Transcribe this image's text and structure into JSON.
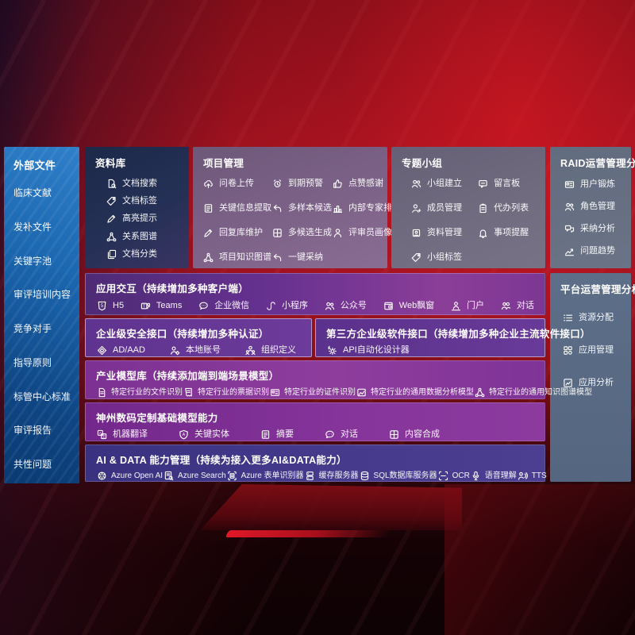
{
  "palette": {
    "background_red": "#a01320",
    "background_dark": "#140205",
    "sidebar_blue": "#1b67b0",
    "panel_navy": "#243055",
    "panel_mauve": "#7d6288",
    "panel_gray": "#716c80",
    "panel_slate_light": "#6b7386",
    "panel_slate": "#586a84",
    "row_purple": "#6a3390",
    "row_violet": "#6d3b9b",
    "row_magenta": "#8e3d9d",
    "row_indigo": "#453a8c",
    "text": "#ffffff"
  },
  "sidebar": {
    "title": "外部文件",
    "items": [
      "临床文献",
      "发补文件",
      "关键字池",
      "审评培训内容",
      "竞争对手",
      "指导原则",
      "标管中心标准",
      "审评报告",
      "共性问题"
    ]
  },
  "repository": {
    "title": "资料库",
    "items": [
      {
        "icon": "doc-search",
        "label": "文档搜索"
      },
      {
        "icon": "tag",
        "label": "文档标签"
      },
      {
        "icon": "highlight-pen",
        "label": "高亮提示"
      },
      {
        "icon": "knowledge-graph",
        "label": "关系图谱"
      },
      {
        "icon": "docs-copy",
        "label": "文档分类"
      }
    ]
  },
  "project": {
    "title": "项目管理",
    "items": [
      {
        "icon": "cloud-upload",
        "label": "问卷上传"
      },
      {
        "icon": "alarm",
        "label": "到期预警"
      },
      {
        "icon": "thumbs-up",
        "label": "点赞感谢"
      },
      {
        "icon": "doc-extract",
        "label": "关键信息提取"
      },
      {
        "icon": "reply-arrow",
        "label": "多样本候选"
      },
      {
        "icon": "ranking",
        "label": "内部专家排名"
      },
      {
        "icon": "edit-pen",
        "label": "回复库维护"
      },
      {
        "icon": "multi-grid",
        "label": "多候选生成"
      },
      {
        "icon": "person",
        "label": "评审员画像"
      },
      {
        "icon": "knowledge-graph",
        "label": "项目知识图谱"
      },
      {
        "icon": "adopt-arrow",
        "label": "一键采纳"
      }
    ]
  },
  "group": {
    "title": "专题小组",
    "items": [
      {
        "icon": "people-group",
        "label": "小组建立"
      },
      {
        "icon": "bbs-board",
        "label": "留言板"
      },
      {
        "icon": "person-add",
        "label": "成员管理"
      },
      {
        "icon": "clipboard-list",
        "label": "代办列表"
      },
      {
        "icon": "album",
        "label": "资料管理"
      },
      {
        "icon": "bell",
        "label": "事项提醒"
      },
      {
        "icon": "tag",
        "label": "小组标签"
      }
    ]
  },
  "raid": {
    "title": "RAID运营管理分析",
    "items": [
      {
        "icon": "id-card",
        "label": "用户锻炼"
      },
      {
        "icon": "people-group",
        "label": "角色管理"
      },
      {
        "icon": "chat-analysis",
        "label": "采纳分析"
      },
      {
        "icon": "trend-chart",
        "label": "问题趋势"
      }
    ]
  },
  "platform": {
    "title": "平台运营管理分析",
    "items": [
      {
        "icon": "resource-list",
        "label": "资源分配"
      },
      {
        "icon": "app-grid",
        "label": "应用管理"
      },
      {
        "icon": "chart-report",
        "label": "应用分析"
      }
    ]
  },
  "interaction": {
    "title": "应用交互（持续增加多种客户端）",
    "items": [
      {
        "icon": "html5",
        "label": "H5"
      },
      {
        "icon": "teams",
        "label": "Teams"
      },
      {
        "icon": "wechat-work",
        "label": "企业微信"
      },
      {
        "icon": "mini-program",
        "label": "小程序"
      },
      {
        "icon": "official-account",
        "label": "公众号"
      },
      {
        "icon": "web-window",
        "label": "Web飘窗"
      },
      {
        "icon": "portal",
        "label": "门户"
      },
      {
        "icon": "dialog-people",
        "label": "对话"
      }
    ]
  },
  "security": {
    "title": "企业级安全接口（持续增加多种认证）",
    "items": [
      {
        "icon": "azure-ad",
        "label": "AD/AAD"
      },
      {
        "icon": "local-account",
        "label": "本地账号"
      },
      {
        "icon": "org-define",
        "label": "组织定义"
      }
    ]
  },
  "thirdparty": {
    "title": "第三方企业级软件接口（持续增加多种企业主流软件接口）",
    "items": [
      {
        "icon": "api-gear",
        "label": "API自动化设计器"
      }
    ]
  },
  "industry": {
    "title": "产业模型库（持续添加端到端场景模型）",
    "items": [
      {
        "icon": "file-doc",
        "label": "特定行业的文件识别"
      },
      {
        "icon": "receipt",
        "label": "特定行业的票据识别"
      },
      {
        "icon": "id-card",
        "label": "特定行业的证件识别"
      },
      {
        "icon": "image-chart",
        "label": "特定行业的通用数据分析模型"
      },
      {
        "icon": "knowledge-graph",
        "label": "特定行业的通用知识图谱模型"
      }
    ]
  },
  "base_models": {
    "title": "神州数码定制基础模型能力",
    "items": [
      {
        "icon": "translate",
        "label": "机器翻译"
      },
      {
        "icon": "shield-a",
        "label": "关键实体"
      },
      {
        "icon": "summary-doc",
        "label": "摘要"
      },
      {
        "icon": "chat-bubble",
        "label": "对话"
      },
      {
        "icon": "compose-grid",
        "label": "内容合成"
      }
    ]
  },
  "ai_data": {
    "title": "AI & DATA 能力管理（持续为接入更多AI&DATA能力）",
    "items": [
      {
        "icon": "openai",
        "label": "Azure Open AI"
      },
      {
        "icon": "search-doc",
        "label": "Azure Search"
      },
      {
        "icon": "form-recognizer",
        "label": "Azure 表单识别器"
      },
      {
        "icon": "server",
        "label": "缓存服务器"
      },
      {
        "icon": "database",
        "label": "SQL数据库服务器"
      },
      {
        "icon": "ocr",
        "label": "OCR"
      },
      {
        "icon": "mic",
        "label": "语音理解"
      },
      {
        "icon": "tts",
        "label": "TTS"
      }
    ]
  }
}
